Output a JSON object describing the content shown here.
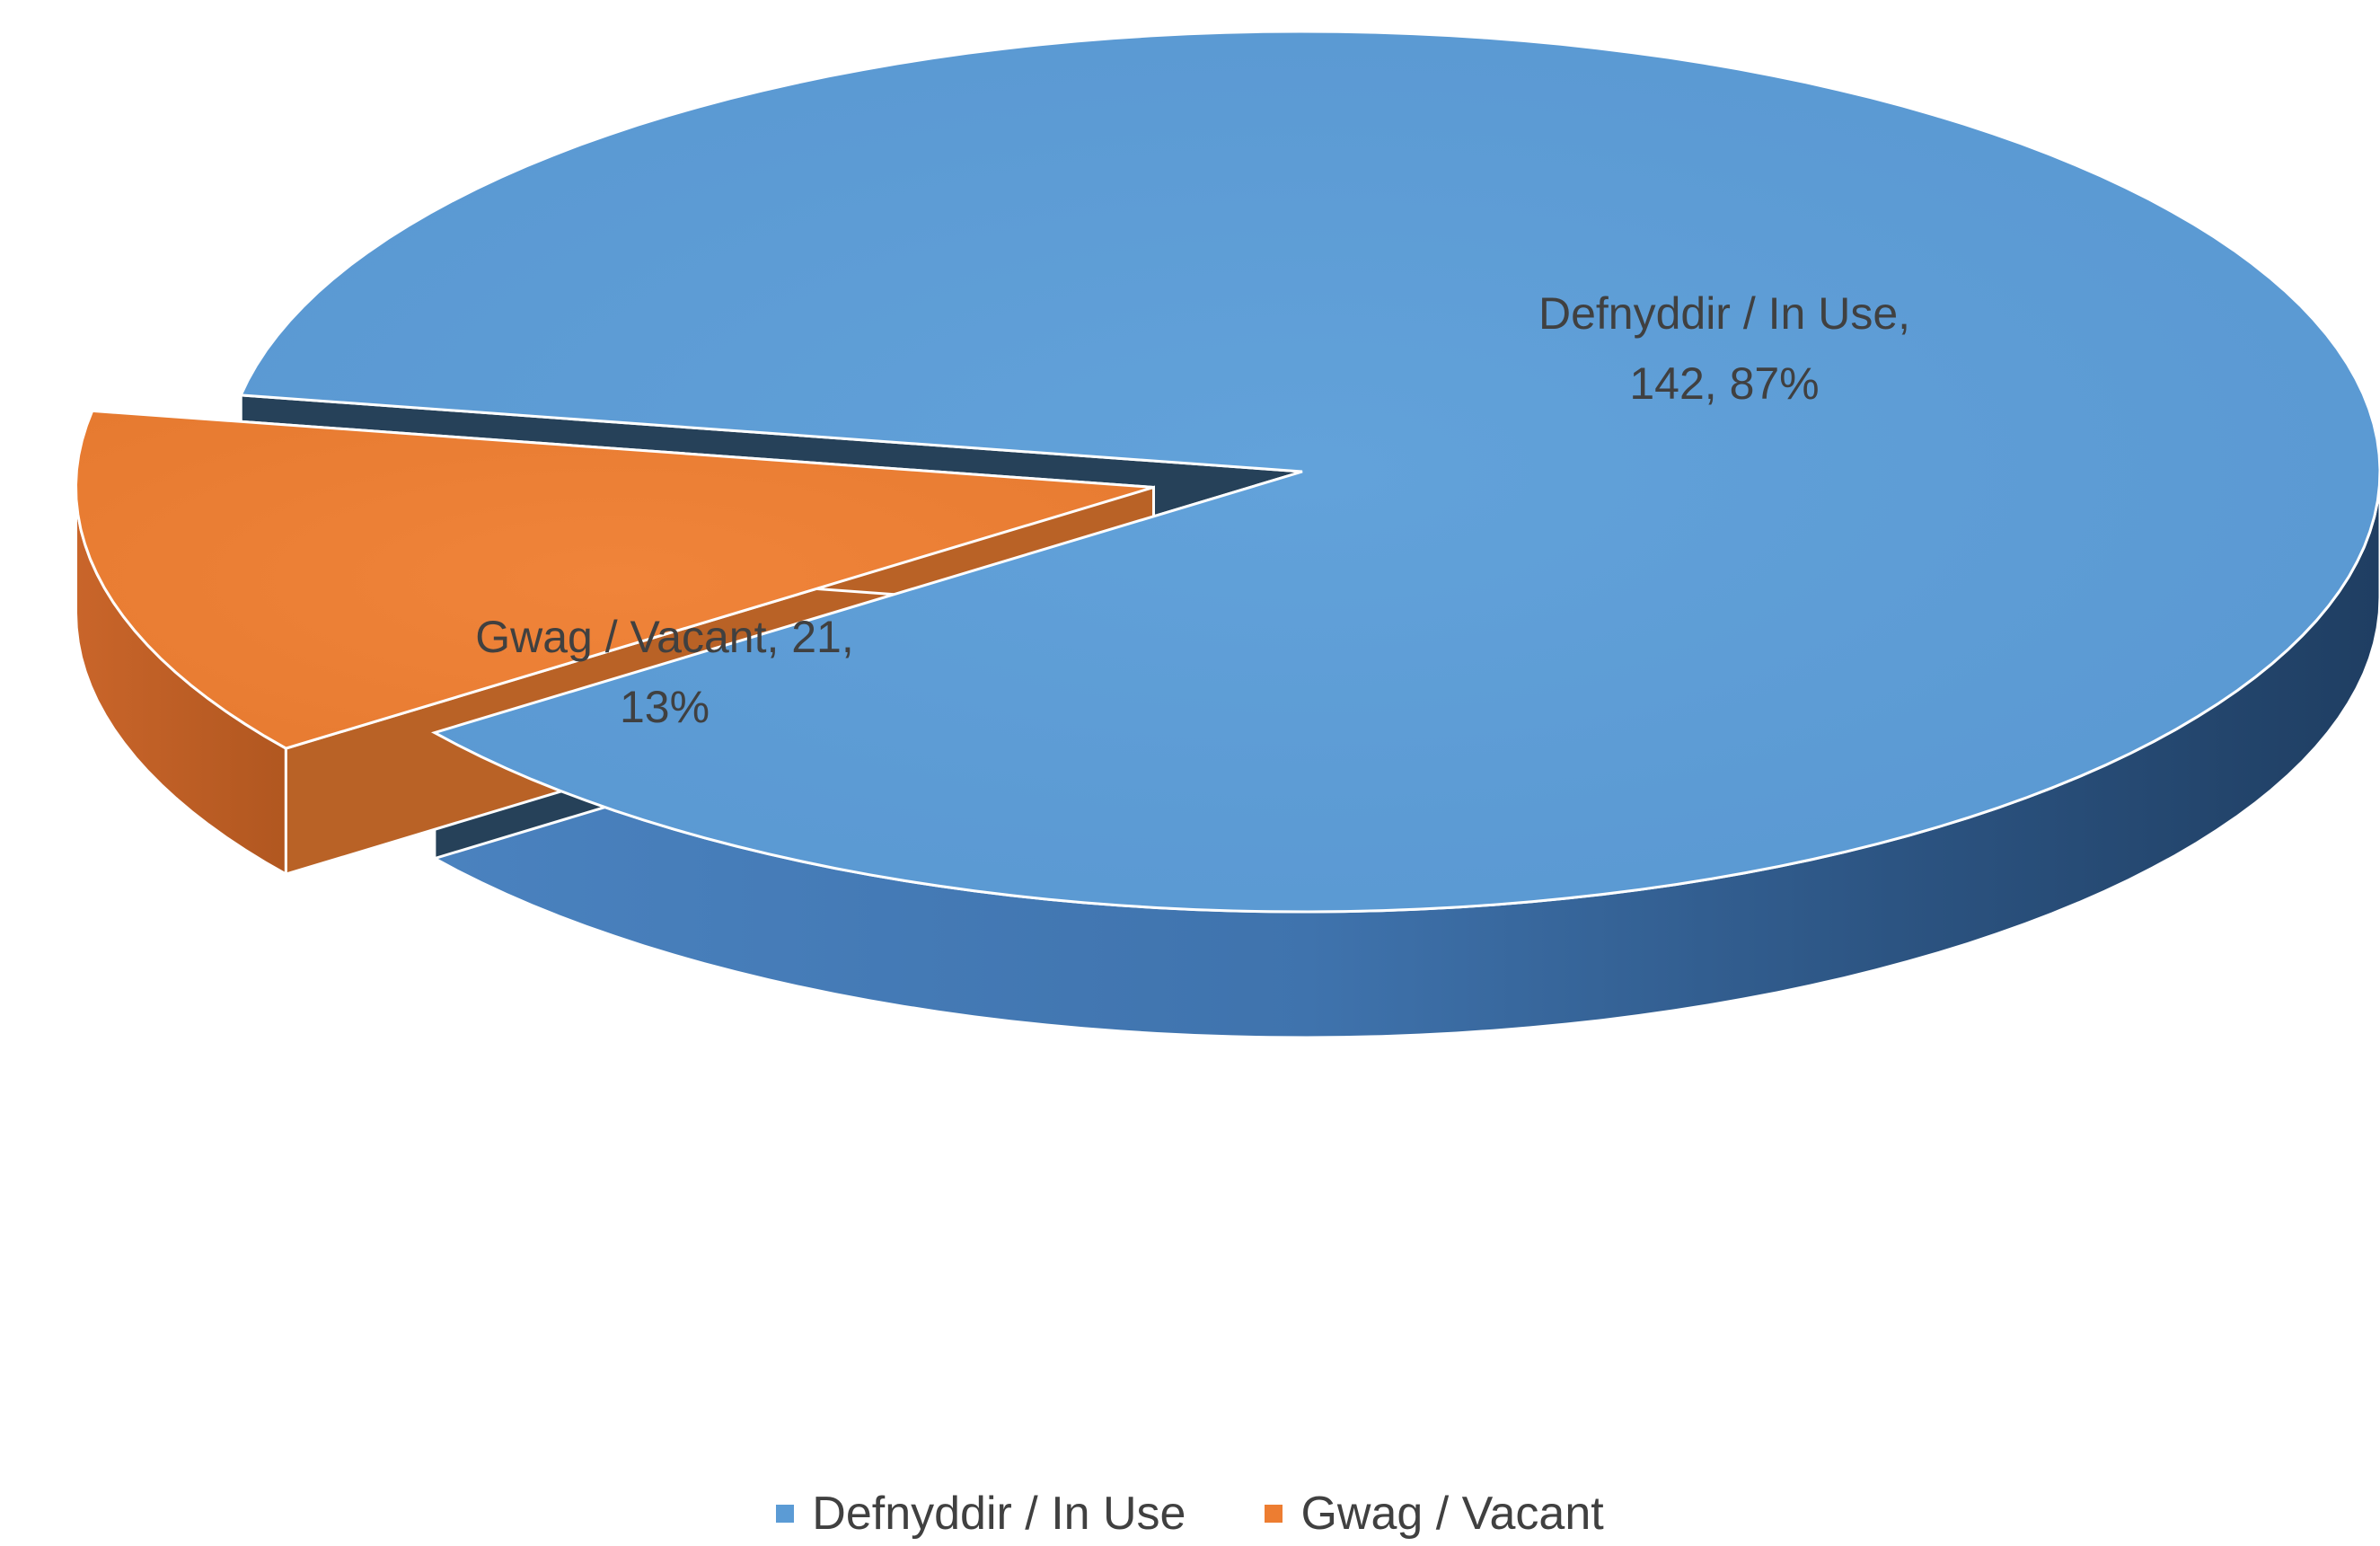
{
  "chart_data": {
    "type": "pie",
    "style": "3d-exploded",
    "title": "",
    "slices": [
      {
        "label": "Defnyddir / In Use",
        "value": 142,
        "percent": 87,
        "color": "#5b9bd5",
        "data_label": [
          "Defnyddir / In Use,",
          "142, 87%"
        ]
      },
      {
        "label": "Gwag / Vacant",
        "value": 21,
        "percent": 13,
        "color": "#ed7d31",
        "data_label": [
          "Gwag / Vacant, 21,",
          "13%"
        ],
        "exploded": true
      }
    ],
    "legend": {
      "position": "bottom",
      "entries": [
        "Defnyddir / In Use",
        "Gwag / Vacant"
      ]
    }
  }
}
